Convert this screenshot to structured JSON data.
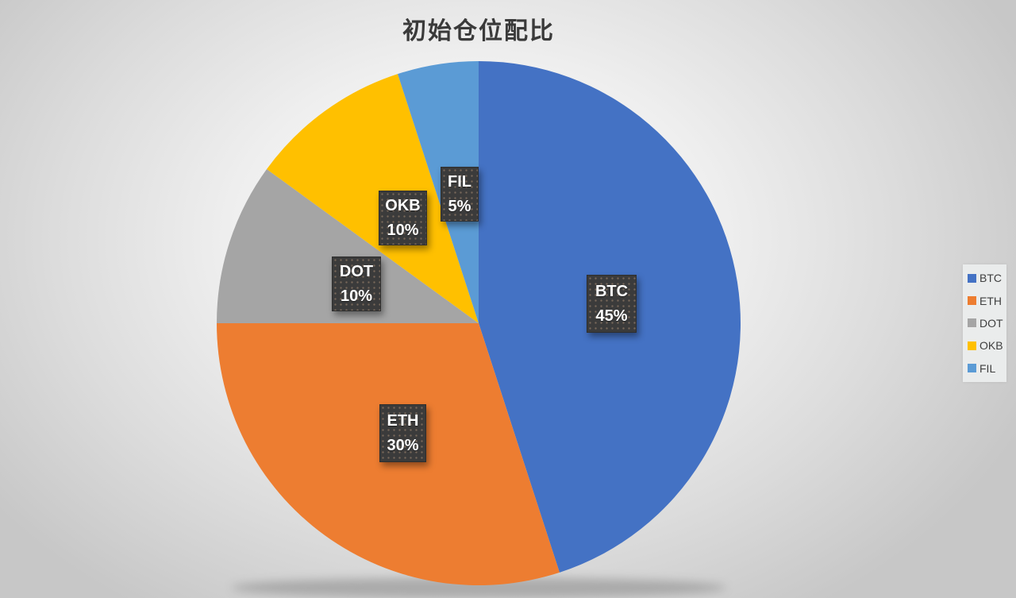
{
  "title": "初始仓位配比",
  "chart_data": {
    "type": "pie",
    "title": "初始仓位配比",
    "categories": [
      "BTC",
      "ETH",
      "DOT",
      "OKB",
      "FIL"
    ],
    "values": [
      45,
      30,
      10,
      10,
      5
    ],
    "unit": "%",
    "colors": [
      "#4472C4",
      "#ED7D31",
      "#A5A5A5",
      "#FFC000",
      "#5B9BD5"
    ],
    "start_angle_deg": 0,
    "direction": "clockwise",
    "legend_position": "right",
    "point_labels": [
      {
        "name": "BTC",
        "value": "45%"
      },
      {
        "name": "ETH",
        "value": "30%"
      },
      {
        "name": "DOT",
        "value": "10%"
      },
      {
        "name": "OKB",
        "value": "10%"
      },
      {
        "name": "FIL",
        "value": "5%"
      }
    ]
  },
  "legend": {
    "items": [
      {
        "label": "BTC",
        "color": "#4472C4"
      },
      {
        "label": "ETH",
        "color": "#ED7D31"
      },
      {
        "label": "DOT",
        "color": "#A5A5A5"
      },
      {
        "label": "OKB",
        "color": "#FFC000"
      },
      {
        "label": "FIL",
        "color": "#5B9BD5"
      }
    ]
  }
}
